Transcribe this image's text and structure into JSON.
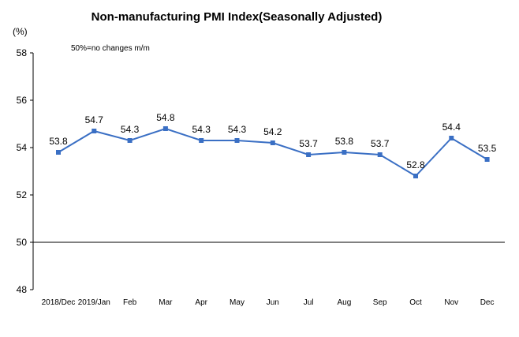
{
  "chart_data": {
    "type": "line",
    "title": "Non-manufacturing PMI Index(Seasonally Adjusted)",
    "note": "50%=no changes  m/m",
    "ylabel": "(%)",
    "xlabel": "",
    "ylim": [
      48,
      58
    ],
    "yticks": [
      48,
      50,
      52,
      54,
      56,
      58
    ],
    "reference_line": 50,
    "grid": false,
    "legend": "none",
    "categories": [
      "2018/Dec",
      "2019/Jan",
      "Feb",
      "Mar",
      "Apr",
      "May",
      "Jun",
      "Jul",
      "Aug",
      "Sep",
      "Oct",
      "Nov",
      "Dec"
    ],
    "series": [
      {
        "values": [
          53.8,
          54.7,
          54.3,
          54.8,
          54.3,
          54.3,
          54.2,
          53.7,
          53.8,
          53.7,
          52.8,
          54.4,
          53.5
        ],
        "labels": [
          "53.8",
          "54.7",
          "54.3",
          "54.8",
          "54.3",
          "54.3",
          "54.2",
          "53.7",
          "53.8",
          "53.7",
          "52.8",
          "54.4",
          "53.5"
        ],
        "color": "#3a6fc4"
      }
    ]
  }
}
